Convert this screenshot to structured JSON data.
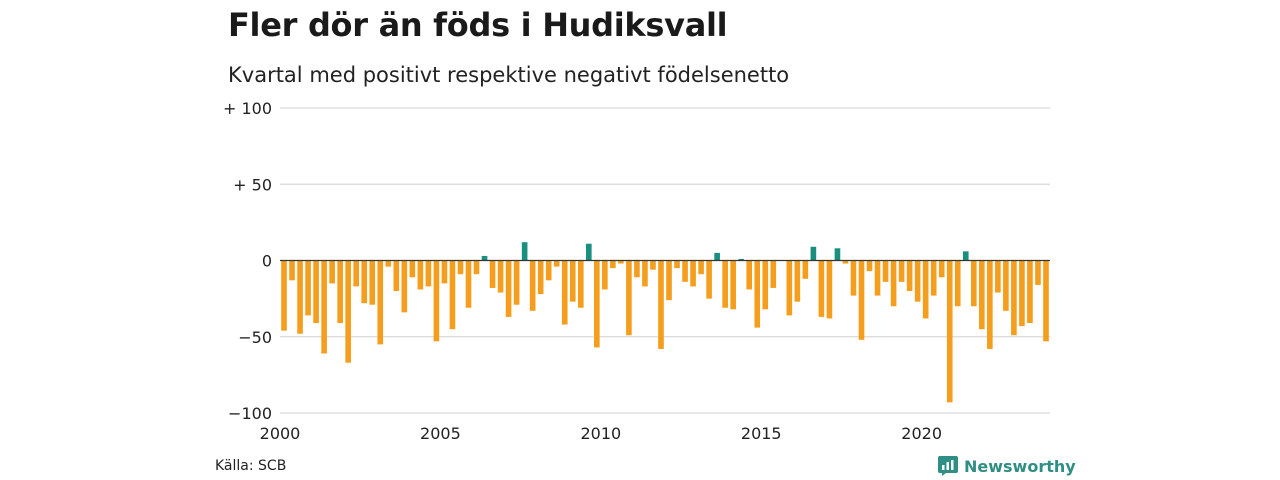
{
  "header": {
    "title": "Fler dör än föds i Hudiksvall",
    "subtitle": "Kvartal med positivt respektive negativt födelsenetto"
  },
  "footer": {
    "source": "Källa: SCB",
    "brand": "Newsworthy",
    "brand_icon": "newsworthy-logo-icon"
  },
  "colors": {
    "positive": "#1a8f80",
    "negative": "#f59e1d",
    "grid": "#d9d9d9",
    "zero": "#333333"
  },
  "chart_data": {
    "type": "bar",
    "title": "Fler dör än föds i Hudiksvall",
    "subtitle": "Kvartal med positivt respektive negativt födelsenetto",
    "xlabel": "",
    "ylabel": "",
    "ylim": [
      -100,
      100
    ],
    "yticks": [
      {
        "value": 100,
        "label": "+ 100"
      },
      {
        "value": 50,
        "label": "+  50"
      },
      {
        "value": 0,
        "label": "0"
      },
      {
        "value": -50,
        "label": "−50"
      },
      {
        "value": -100,
        "label": "−100"
      }
    ],
    "xticks": [
      {
        "value": 2000,
        "label": "2000"
      },
      {
        "value": 2005,
        "label": "2005"
      },
      {
        "value": 2010,
        "label": "2010"
      },
      {
        "value": 2015,
        "label": "2015"
      },
      {
        "value": 2020,
        "label": "2020"
      }
    ],
    "grid": true,
    "x_start": "2000 Q1",
    "x_end": "2023 Q4",
    "values": [
      -46,
      -13,
      -48,
      -36,
      -41,
      -61,
      -15,
      -41,
      -67,
      -17,
      -28,
      -29,
      -55,
      -4,
      -20,
      -34,
      -11,
      -19,
      -17,
      -53,
      -15,
      -45,
      -9,
      -31,
      -9,
      3,
      -18,
      -21,
      -37,
      -29,
      12,
      -33,
      -22,
      -13,
      -4,
      -42,
      -27,
      -31,
      11,
      -57,
      -19,
      -5,
      -2,
      -49,
      -11,
      -17,
      -6,
      -58,
      -26,
      -5,
      -14,
      -17,
      -9,
      -25,
      5,
      -31,
      -32,
      1,
      -19,
      -44,
      -32,
      -18,
      0,
      -36,
      -27,
      -12,
      9,
      -37,
      -38,
      8,
      -2,
      -23,
      -52,
      -7,
      -23,
      -14,
      -30,
      -14,
      -20,
      -27,
      -38,
      -23,
      -11,
      -93,
      -30,
      6,
      -30,
      -45,
      -58,
      -21,
      -33,
      -49,
      -43,
      -41,
      -16,
      -53
    ]
  }
}
